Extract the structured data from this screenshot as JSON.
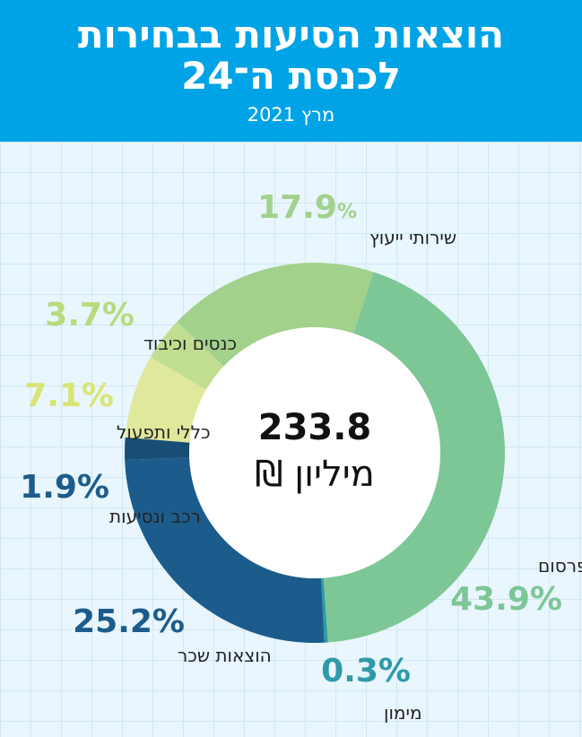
{
  "header": {
    "title_line1": "הוצאות הסיעות בבחירות",
    "title_line2": "לכנסת ה־24",
    "subtitle": "מרץ 2021"
  },
  "colors": {
    "header_bg": "#00a3e6",
    "light_green": "#a2d18c",
    "green": "#7dc695",
    "teal": "#2f9aa8",
    "blue": "#1c5c8c",
    "dark_blue": "#184d76",
    "yellow_green": "#dfe89b",
    "pale_green": "#c1dd90"
  },
  "chart_data": {
    "type": "pie",
    "variant": "donut",
    "center_total": "233.8",
    "center_unit": "מיליון ₪",
    "slices": [
      {
        "label": "פרסום",
        "pct_number": "43.9",
        "pct_sign": "%",
        "value": 43.9,
        "color": "#7dc695",
        "pct_color": "#7dc695"
      },
      {
        "label": "מימון",
        "pct_number": "0.3",
        "pct_sign": "%",
        "value": 0.3,
        "color": "#2f9aa8",
        "pct_color": "#2f9aa8"
      },
      {
        "label": "הוצאות שכר",
        "pct_number": "25.2",
        "pct_sign": "%",
        "value": 25.2,
        "color": "#1c5c8c",
        "pct_color": "#1c5c8c"
      },
      {
        "label": "רכב ונסיעות",
        "pct_number": "1.9",
        "pct_sign": "%",
        "value": 1.9,
        "color": "#184d76",
        "pct_color": "#1c5c8c"
      },
      {
        "label": "כללי ותפעול",
        "pct_number": "7.1",
        "pct_sign": "%",
        "value": 7.1,
        "color": "#dfe89b",
        "pct_color": "#d9e475"
      },
      {
        "label": "כנסים וכיבוד",
        "pct_number": "3.7",
        "pct_sign": "%",
        "value": 3.7,
        "color": "#c1dd90",
        "pct_color": "#b9da7d"
      },
      {
        "label": "שירותי ייעוץ",
        "pct_number": "17.9",
        "pct_sign": "%",
        "value": 17.9,
        "color": "#a2d18c",
        "pct_color": "#a2d18c"
      }
    ]
  }
}
